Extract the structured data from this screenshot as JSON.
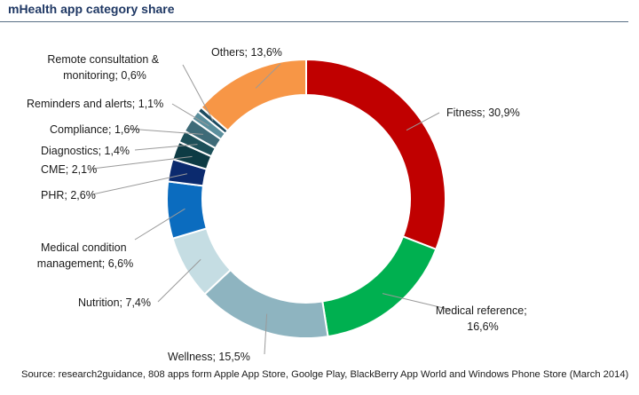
{
  "header": {
    "title": "mHealth app category share"
  },
  "chart_data": {
    "type": "pie",
    "title": "mHealth app category share",
    "donut": true,
    "legend": "none",
    "slices": [
      {
        "label": "Fitness; 30,9%",
        "name": "Fitness",
        "value": 30.9,
        "color": "#c00000"
      },
      {
        "label": "Medical reference; 16,6%",
        "name": "Medical reference",
        "value": 16.6,
        "color": "#00b050"
      },
      {
        "label": "Wellness; 15,5%",
        "name": "Wellness",
        "value": 15.5,
        "color": "#8eb4c0"
      },
      {
        "label": "Nutrition; 7,4%",
        "name": "Nutrition",
        "value": 7.4,
        "color": "#c5dde3"
      },
      {
        "label": "Medical condition management; 6,6%",
        "name": "Medical condition management",
        "value": 6.6,
        "color": "#0b6cbf"
      },
      {
        "label": "PHR; 2,6%",
        "name": "PHR",
        "value": 2.6,
        "color": "#0b2a6e"
      },
      {
        "label": "CME; 2,1%",
        "name": "CME",
        "value": 2.1,
        "color": "#0d3b44"
      },
      {
        "label": "Diagnostics; 1,4%",
        "name": "Diagnostics",
        "value": 1.4,
        "color": "#1d5059"
      },
      {
        "label": "Compliance; 1,6%",
        "name": "Compliance",
        "value": 1.6,
        "color": "#3e6b78"
      },
      {
        "label": "Reminders and alerts; 1,1%",
        "name": "Reminders and alerts",
        "value": 1.1,
        "color": "#5b8f9d"
      },
      {
        "label": "Remote consultation & monitoring; 0,6%",
        "name": "Remote consultation & monitoring",
        "value": 0.6,
        "color": "#1c4b60"
      },
      {
        "label": "Others; 13,6%",
        "name": "Others",
        "value": 13.6,
        "color": "#f79646"
      }
    ]
  },
  "footer": {
    "source": "Source: research2guidance,  808 apps form Apple App Store, Goolge Play, BlackBerry App World and Windows Phone Store (March 2014)"
  }
}
